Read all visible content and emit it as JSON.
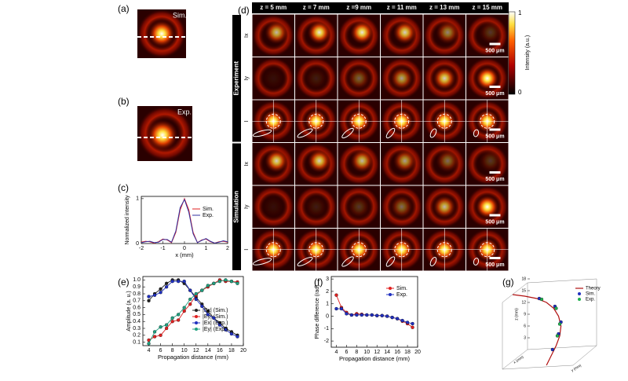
{
  "figure": {
    "panel_a": {
      "label": "(a)",
      "tag": "Sim."
    },
    "panel_b": {
      "label": "(b)",
      "tag": "Exp."
    },
    "panel_d": {
      "label": "(d)",
      "columns": [
        "z = 5 mm",
        "z = 7 mm",
        "z =9 mm",
        "z = 11 mm",
        "z = 13 mm",
        "z = 15 mm"
      ],
      "groups": [
        "Experiment",
        "Simulation"
      ],
      "rows": [
        "Ix",
        "Iy",
        "I"
      ],
      "scale_bar": "500 μm",
      "colorbar": {
        "max": "1",
        "min": "0",
        "label": "Intensity (a.u.)"
      }
    }
  },
  "chart_data": [
    {
      "type": "line",
      "label": "(c)",
      "x_label": "x (mm)",
      "y_label": "Normalized intensity",
      "x": [
        -2,
        -1.8,
        -1.6,
        -1.4,
        -1.2,
        -1,
        -0.8,
        -0.6,
        -0.4,
        -0.2,
        0,
        0.2,
        0.4,
        0.6,
        0.8,
        1,
        1.2,
        1.4,
        1.6,
        1.8,
        2
      ],
      "series": [
        {
          "name": "Sim.",
          "color": "#e02020",
          "values": [
            0.03,
            0.05,
            0.04,
            0.01,
            0.04,
            0.1,
            0.08,
            0.02,
            0.25,
            0.75,
            1,
            0.75,
            0.25,
            0.02,
            0.08,
            0.1,
            0.04,
            0.01,
            0.04,
            0.05,
            0.03
          ]
        },
        {
          "name": "Exp.",
          "color": "#3030a0",
          "values": [
            0.02,
            0.04,
            0.05,
            0.02,
            0.03,
            0.09,
            0.09,
            0.03,
            0.28,
            0.8,
            0.98,
            0.7,
            0.22,
            0.02,
            0.07,
            0.11,
            0.05,
            0.01,
            0.03,
            0.06,
            0.04
          ]
        }
      ],
      "xlim": [
        -2,
        2
      ],
      "xticks": [
        -2,
        -1,
        0,
        1,
        2
      ],
      "ylim": [
        0,
        1.05
      ],
      "yticks": [
        0,
        1
      ],
      "markers": false
    },
    {
      "type": "line",
      "label": "(e)",
      "x_label": "Propagation distance (mm)",
      "y_label": "Amplitude (a. u.)",
      "x": [
        4,
        5,
        6,
        7,
        8,
        9,
        10,
        11,
        12,
        13,
        14,
        15,
        16,
        17,
        18,
        19
      ],
      "series": [
        {
          "name": "|Ex| (Sim.)",
          "color": "#222222",
          "values": [
            0.7,
            0.8,
            0.87,
            0.95,
            1.0,
            1.0,
            0.95,
            0.85,
            0.75,
            0.65,
            0.55,
            0.45,
            0.38,
            0.3,
            0.25,
            0.2
          ]
        },
        {
          "name": "|Ey| (Sim.)",
          "color": "#e02020",
          "values": [
            0.13,
            0.18,
            0.2,
            0.3,
            0.4,
            0.42,
            0.55,
            0.65,
            0.78,
            0.85,
            0.9,
            0.95,
            1.0,
            0.98,
            0.98,
            0.97
          ]
        },
        {
          "name": "|Ex| (Exp.)",
          "color": "#2030c0",
          "values": [
            0.76,
            0.78,
            0.82,
            0.9,
            0.98,
            0.98,
            0.98,
            0.85,
            0.72,
            0.62,
            0.5,
            0.45,
            0.35,
            0.28,
            0.22,
            0.18
          ]
        },
        {
          "name": "|Ey| (Exp.)",
          "color": "#20a080",
          "values": [
            0.08,
            0.25,
            0.32,
            0.35,
            0.45,
            0.5,
            0.6,
            0.72,
            0.8,
            0.85,
            0.92,
            0.95,
            0.98,
            1.0,
            0.98,
            0.95
          ]
        }
      ],
      "xlim": [
        3,
        20
      ],
      "xticks": [
        4,
        6,
        8,
        10,
        12,
        14,
        16,
        18,
        20
      ],
      "ylim": [
        0.05,
        1.05
      ],
      "yticks": [
        {
          "value": 0.1,
          "label": "0.1"
        },
        {
          "value": 0.2,
          "label": "0.2"
        },
        {
          "value": 0.3,
          "label": "0.3"
        },
        {
          "value": 0.4,
          "label": "0.4"
        },
        {
          "value": 0.5,
          "label": "0.5"
        },
        {
          "value": 0.6,
          "label": "0.6"
        },
        {
          "value": 0.7,
          "label": "0.7"
        },
        {
          "value": 0.8,
          "label": "0.8"
        },
        {
          "value": 0.9,
          "label": "0.9"
        },
        {
          "value": 1.0,
          "label": "1.0"
        }
      ],
      "markers": true
    },
    {
      "type": "line",
      "label": "(f)",
      "x_label": "Propagation distance (mm)",
      "y_label": "Phase difference (rad)",
      "x": [
        4,
        5,
        6,
        7,
        8,
        9,
        10,
        11,
        12,
        13,
        14,
        15,
        16,
        17,
        18,
        19
      ],
      "series": [
        {
          "name": "Sim.",
          "color": "#e02020",
          "values": [
            1.7,
            0.7,
            0.3,
            0.1,
            0.2,
            0.15,
            0.1,
            0.1,
            0.05,
            0.05,
            0,
            -0.1,
            -0.2,
            -0.4,
            -0.6,
            -0.9
          ]
        },
        {
          "name": "Exp.",
          "color": "#2030c0",
          "values": [
            0.6,
            0.6,
            0.2,
            0.1,
            0.1,
            0.1,
            0.1,
            0.1,
            0.05,
            0.05,
            0,
            -0.1,
            -0.2,
            -0.35,
            -0.5,
            -0.6
          ]
        }
      ],
      "xlim": [
        3,
        20
      ],
      "xticks": [
        4,
        6,
        8,
        10,
        12,
        14,
        16,
        18,
        20
      ],
      "ylim": [
        -2.5,
        3.2
      ],
      "yticks": [
        -2,
        -1,
        0,
        1,
        2,
        3
      ],
      "markers": true
    },
    {
      "type": "curve3d",
      "label": "(g)",
      "z_label": "z (mm)",
      "x_label": "x (mm)",
      "y_label": "y (mm)",
      "series": [
        {
          "name": "Theory",
          "color": "#b01010",
          "x": [
            -1.5,
            -1,
            -0.5,
            -0.1,
            0.2,
            0.4,
            0.5,
            0.45,
            0.3,
            0.1,
            -0.1
          ],
          "values": [
            18,
            17.6,
            17,
            16,
            14.5,
            12.5,
            10,
            7.5,
            5,
            2.5,
            0
          ],
          "markers": false
        },
        {
          "name": "Sim.",
          "color": "#2030c0",
          "x": [
            -0.4,
            0.25,
            0.5,
            0.4,
            0.15
          ],
          "values": [
            17,
            15,
            11,
            8,
            4
          ],
          "markers": true
        },
        {
          "name": "Exp.",
          "color": "#20b050",
          "x": [
            -0.3,
            0.3,
            0.45,
            0.35
          ],
          "values": [
            16.8,
            14.5,
            10.5,
            7.5
          ],
          "markers": true
        }
      ],
      "xlim": [
        -1.6,
        1
      ],
      "zlim": [
        0,
        20
      ],
      "zticks": [
        3,
        6,
        9,
        12,
        15,
        18
      ]
    }
  ]
}
